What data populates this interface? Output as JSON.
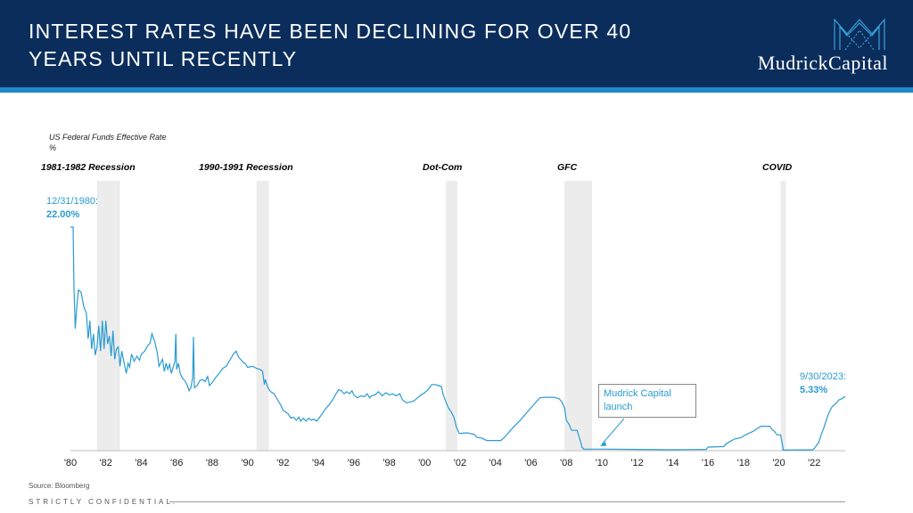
{
  "header": {
    "title_line1": "INTEREST RATES HAVE BEEN DECLINING FOR OVER 40",
    "title_line2": "YEARS UNTIL RECENTLY",
    "logo_text": "MudrickCapital",
    "logo_icon": "m-lattice-logo-icon",
    "background_color": "#0b2d5c",
    "accent_color": "#1e88c8"
  },
  "chart_data": {
    "type": "line",
    "title": "US Federal Funds Effective Rate",
    "ylabel": "%",
    "line_color": "#2a9bd1",
    "x_range": [
      1980.0,
      2023.75
    ],
    "ylim": [
      0,
      22
    ],
    "x_ticks": [
      "'80",
      "'82",
      "'84",
      "'86",
      "'88",
      "'90",
      "'92",
      "'94",
      "'96",
      "'98",
      "'00",
      "'02",
      "'04",
      "'06",
      "'08",
      "'10",
      "'12",
      "'14",
      "'16",
      "'18",
      "'20",
      "'22"
    ],
    "recessions": [
      {
        "label": "1981-1982 Recession",
        "start": 1981.5,
        "end": 1982.8
      },
      {
        "label": "1990-1991 Recession",
        "start": 1990.5,
        "end": 1991.2
      },
      {
        "label": "Dot-Com",
        "start": 2001.2,
        "end": 2001.85
      },
      {
        "label": "GFC",
        "start": 2007.9,
        "end": 2009.45
      },
      {
        "label": "COVID",
        "start": 2020.1,
        "end": 2020.4
      }
    ],
    "series": [
      {
        "name": "Fed Funds Effective Rate",
        "points": [
          [
            1980.0,
            22.0
          ],
          [
            1980.15,
            22.0
          ],
          [
            1980.2,
            16.0
          ],
          [
            1980.27,
            12.0
          ],
          [
            1980.35,
            14.0
          ],
          [
            1980.45,
            15.8
          ],
          [
            1980.6,
            15.6
          ],
          [
            1980.75,
            14.2
          ],
          [
            1980.9,
            13.5
          ],
          [
            1981.0,
            11.0
          ],
          [
            1981.1,
            12.8
          ],
          [
            1981.2,
            10.0
          ],
          [
            1981.3,
            11.5
          ],
          [
            1981.4,
            9.4
          ],
          [
            1981.5,
            10.2
          ],
          [
            1981.6,
            12.3
          ],
          [
            1981.7,
            9.8
          ],
          [
            1981.8,
            12.8
          ],
          [
            1981.9,
            10.0
          ],
          [
            1982.0,
            12.8
          ],
          [
            1982.1,
            10.5
          ],
          [
            1982.2,
            11.3
          ],
          [
            1982.3,
            9.3
          ],
          [
            1982.4,
            11.8
          ],
          [
            1982.5,
            9.0
          ],
          [
            1982.6,
            10.0
          ],
          [
            1982.7,
            10.2
          ],
          [
            1982.8,
            8.3
          ],
          [
            1982.9,
            9.8
          ],
          [
            1983.0,
            8.9
          ],
          [
            1983.15,
            7.6
          ],
          [
            1983.25,
            8.6
          ],
          [
            1983.35,
            8.2
          ],
          [
            1983.45,
            9.5
          ],
          [
            1983.6,
            8.8
          ],
          [
            1983.75,
            9.3
          ],
          [
            1983.9,
            8.9
          ],
          [
            1984.0,
            9.5
          ],
          [
            1984.2,
            9.8
          ],
          [
            1984.35,
            10.3
          ],
          [
            1984.5,
            10.6
          ],
          [
            1984.6,
            11.5
          ],
          [
            1984.75,
            10.8
          ],
          [
            1984.9,
            9.7
          ],
          [
            1985.0,
            8.3
          ],
          [
            1985.2,
            9.0
          ],
          [
            1985.3,
            7.8
          ],
          [
            1985.4,
            8.6
          ],
          [
            1985.5,
            8.0
          ],
          [
            1985.6,
            8.5
          ],
          [
            1985.7,
            7.6
          ],
          [
            1985.8,
            8.2
          ],
          [
            1985.9,
            8.8
          ],
          [
            1985.95,
            11.5
          ],
          [
            1986.0,
            8.0
          ],
          [
            1986.1,
            8.6
          ],
          [
            1986.2,
            7.6
          ],
          [
            1986.3,
            7.2
          ],
          [
            1986.4,
            7.0
          ],
          [
            1986.5,
            6.8
          ],
          [
            1986.6,
            6.4
          ],
          [
            1986.7,
            5.9
          ],
          [
            1986.8,
            6.2
          ],
          [
            1986.9,
            7.2
          ],
          [
            1986.95,
            11.2
          ],
          [
            1987.0,
            6.2
          ],
          [
            1987.15,
            6.4
          ],
          [
            1987.3,
            6.9
          ],
          [
            1987.45,
            7.0
          ],
          [
            1987.6,
            6.8
          ],
          [
            1987.75,
            7.3
          ],
          [
            1987.85,
            6.4
          ],
          [
            1988.0,
            6.7
          ],
          [
            1988.2,
            7.2
          ],
          [
            1988.4,
            7.6
          ],
          [
            1988.6,
            8.1
          ],
          [
            1988.8,
            8.3
          ],
          [
            1989.0,
            8.9
          ],
          [
            1989.2,
            9.5
          ],
          [
            1989.35,
            9.8
          ],
          [
            1989.5,
            9.2
          ],
          [
            1989.7,
            8.8
          ],
          [
            1989.9,
            8.5
          ],
          [
            1990.0,
            8.2
          ],
          [
            1990.3,
            8.3
          ],
          [
            1990.5,
            8.1
          ],
          [
            1990.7,
            8.0
          ],
          [
            1990.85,
            7.8
          ],
          [
            1990.95,
            6.5
          ],
          [
            1991.0,
            7.0
          ],
          [
            1991.15,
            6.2
          ],
          [
            1991.3,
            5.8
          ],
          [
            1991.5,
            5.6
          ],
          [
            1991.7,
            5.0
          ],
          [
            1991.9,
            4.4
          ],
          [
            1992.0,
            4.0
          ],
          [
            1992.15,
            3.8
          ],
          [
            1992.3,
            3.6
          ],
          [
            1992.45,
            3.2
          ],
          [
            1992.6,
            3.3
          ],
          [
            1992.75,
            3.0
          ],
          [
            1992.9,
            3.3
          ],
          [
            1993.0,
            2.9
          ],
          [
            1993.15,
            3.2
          ],
          [
            1993.3,
            2.9
          ],
          [
            1993.45,
            3.2
          ],
          [
            1993.6,
            3.0
          ],
          [
            1993.75,
            3.1
          ],
          [
            1993.9,
            2.9
          ],
          [
            1994.0,
            3.1
          ],
          [
            1994.2,
            3.6
          ],
          [
            1994.4,
            4.1
          ],
          [
            1994.6,
            4.5
          ],
          [
            1994.8,
            5.0
          ],
          [
            1995.0,
            5.6
          ],
          [
            1995.15,
            6.0
          ],
          [
            1995.3,
            5.9
          ],
          [
            1995.45,
            5.6
          ],
          [
            1995.6,
            5.8
          ],
          [
            1995.75,
            5.6
          ],
          [
            1995.9,
            5.9
          ],
          [
            1996.0,
            5.5
          ],
          [
            1996.2,
            5.2
          ],
          [
            1996.4,
            5.4
          ],
          [
            1996.6,
            5.3
          ],
          [
            1996.75,
            5.6
          ],
          [
            1996.9,
            5.2
          ],
          [
            1997.0,
            5.4
          ],
          [
            1997.2,
            5.5
          ],
          [
            1997.4,
            5.8
          ],
          [
            1997.6,
            5.4
          ],
          [
            1997.8,
            5.7
          ],
          [
            1998.0,
            5.5
          ],
          [
            1998.2,
            5.6
          ],
          [
            1998.4,
            5.4
          ],
          [
            1998.6,
            5.6
          ],
          [
            1998.75,
            5.0
          ],
          [
            1998.9,
            4.8
          ],
          [
            1999.0,
            4.7
          ],
          [
            1999.2,
            4.8
          ],
          [
            1999.4,
            4.9
          ],
          [
            1999.6,
            5.2
          ],
          [
            1999.8,
            5.5
          ],
          [
            2000.0,
            5.7
          ],
          [
            2000.2,
            6.0
          ],
          [
            2000.4,
            6.5
          ],
          [
            2000.6,
            6.5
          ],
          [
            2000.8,
            6.4
          ],
          [
            2000.95,
            6.3
          ],
          [
            2001.05,
            5.5
          ],
          [
            2001.2,
            4.8
          ],
          [
            2001.35,
            4.2
          ],
          [
            2001.5,
            3.8
          ],
          [
            2001.65,
            3.3
          ],
          [
            2001.8,
            2.3
          ],
          [
            2001.95,
            1.7
          ],
          [
            2002.0,
            1.7
          ],
          [
            2002.4,
            1.75
          ],
          [
            2002.8,
            1.6
          ],
          [
            2002.95,
            1.3
          ],
          [
            2003.2,
            1.25
          ],
          [
            2003.5,
            1.0
          ],
          [
            2003.9,
            1.0
          ],
          [
            2004.3,
            1.0
          ],
          [
            2004.5,
            1.3
          ],
          [
            2004.75,
            1.8
          ],
          [
            2005.0,
            2.3
          ],
          [
            2005.3,
            2.8
          ],
          [
            2005.6,
            3.4
          ],
          [
            2005.9,
            4.0
          ],
          [
            2006.2,
            4.6
          ],
          [
            2006.5,
            5.2
          ],
          [
            2006.8,
            5.25
          ],
          [
            2007.0,
            5.25
          ],
          [
            2007.3,
            5.25
          ],
          [
            2007.6,
            5.1
          ],
          [
            2007.75,
            4.8
          ],
          [
            2007.9,
            4.2
          ],
          [
            2008.0,
            3.0
          ],
          [
            2008.15,
            2.6
          ],
          [
            2008.3,
            2.0
          ],
          [
            2008.6,
            2.0
          ],
          [
            2008.75,
            1.2
          ],
          [
            2008.9,
            0.3
          ],
          [
            2009.0,
            0.15
          ],
          [
            2010.0,
            0.15
          ],
          [
            2012.0,
            0.12
          ],
          [
            2014.0,
            0.09
          ],
          [
            2015.9,
            0.12
          ],
          [
            2016.0,
            0.35
          ],
          [
            2016.9,
            0.4
          ],
          [
            2017.0,
            0.65
          ],
          [
            2017.25,
            0.9
          ],
          [
            2017.5,
            1.15
          ],
          [
            2017.9,
            1.3
          ],
          [
            2018.0,
            1.45
          ],
          [
            2018.3,
            1.7
          ],
          [
            2018.55,
            1.9
          ],
          [
            2018.8,
            2.2
          ],
          [
            2019.0,
            2.4
          ],
          [
            2019.5,
            2.4
          ],
          [
            2019.6,
            2.1
          ],
          [
            2019.75,
            1.9
          ],
          [
            2019.9,
            1.55
          ],
          [
            2020.1,
            1.55
          ],
          [
            2020.2,
            0.65
          ],
          [
            2020.25,
            0.05
          ],
          [
            2021.0,
            0.08
          ],
          [
            2021.9,
            0.08
          ],
          [
            2022.0,
            0.2
          ],
          [
            2022.25,
            0.8
          ],
          [
            2022.4,
            1.6
          ],
          [
            2022.55,
            2.3
          ],
          [
            2022.7,
            3.1
          ],
          [
            2022.85,
            3.8
          ],
          [
            2023.0,
            4.3
          ],
          [
            2023.2,
            4.6
          ],
          [
            2023.4,
            5.0
          ],
          [
            2023.55,
            5.1
          ],
          [
            2023.75,
            5.33
          ]
        ]
      }
    ],
    "annotations": {
      "start_date": "12/31/1980:",
      "start_value": "22.00%",
      "end_date": "9/30/2023:",
      "end_value": "5.33%",
      "callout": {
        "line1": "Mudrick Capital",
        "line2": "launch",
        "x": 2009.0,
        "y": 0.2
      }
    },
    "source": "Source: Bloomberg"
  },
  "footer": {
    "confidential": "STRICTLY CONFIDENTIAL."
  }
}
